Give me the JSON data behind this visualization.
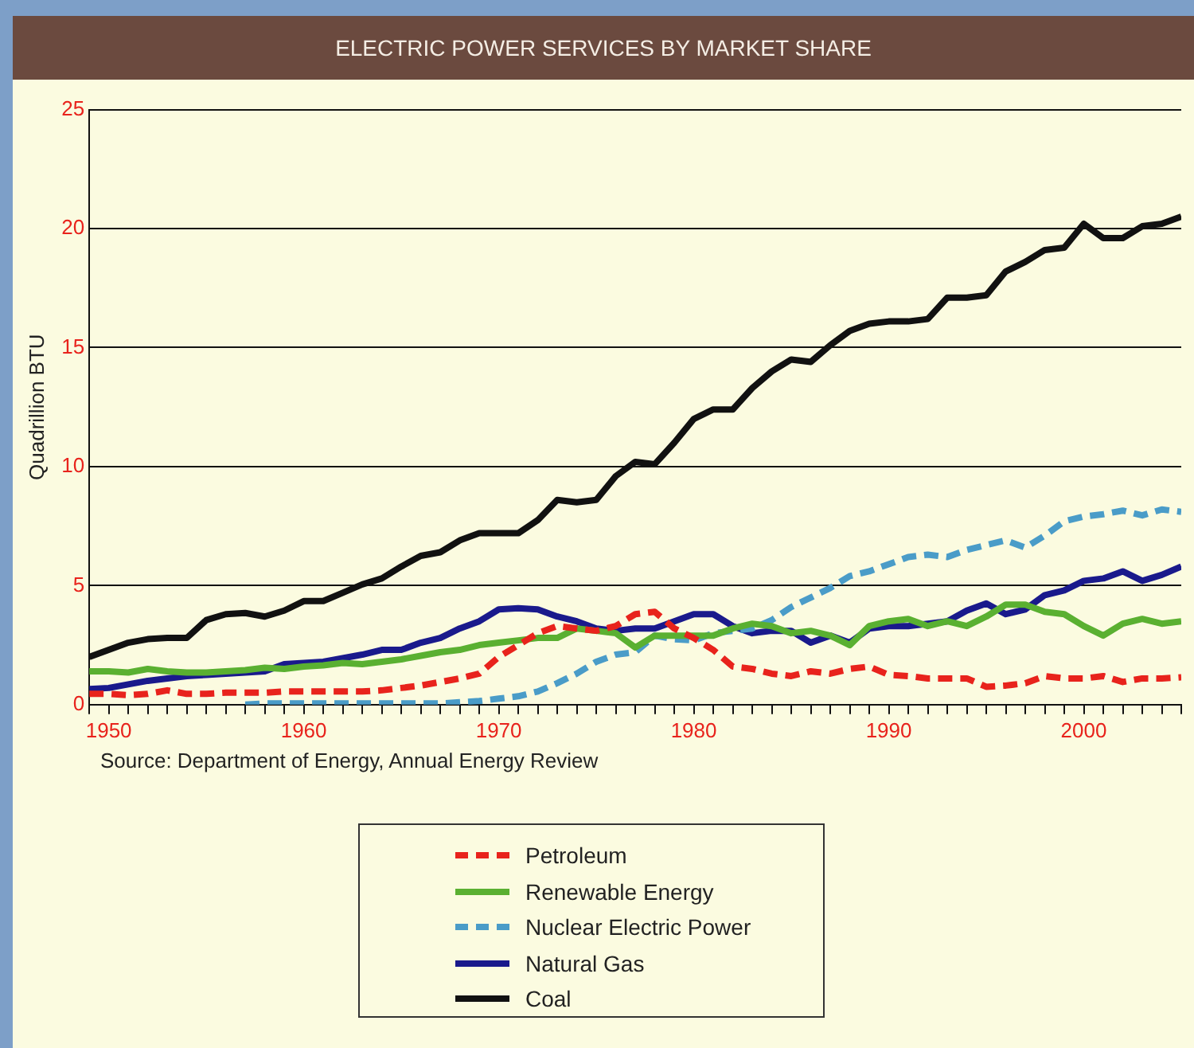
{
  "chart_data": {
    "type": "line",
    "title": "ELECTRIC POWER SERVICES BY MARKET SHARE",
    "ylabel": "Quadrillion BTU",
    "annotations": [
      "Source: Department of Energy, Annual Energy Review"
    ],
    "x": [
      1949,
      1950,
      1951,
      1952,
      1953,
      1954,
      1955,
      1956,
      1957,
      1958,
      1959,
      1960,
      1961,
      1962,
      1963,
      1964,
      1965,
      1966,
      1967,
      1968,
      1969,
      1970,
      1971,
      1972,
      1973,
      1974,
      1975,
      1976,
      1977,
      1978,
      1979,
      1980,
      1981,
      1982,
      1983,
      1984,
      1985,
      1986,
      1987,
      1988,
      1989,
      1990,
      1991,
      1992,
      1993,
      1994,
      1995,
      1996,
      1997,
      1998,
      1999,
      2000,
      2001,
      2002,
      2003,
      2004,
      2005
    ],
    "series": [
      {
        "name": "Petroleum",
        "color": "#e8231c",
        "line_style": "dashed",
        "values": [
          0.45,
          0.45,
          0.4,
          0.45,
          0.6,
          0.45,
          0.45,
          0.5,
          0.5,
          0.5,
          0.55,
          0.55,
          0.55,
          0.55,
          0.55,
          0.6,
          0.7,
          0.8,
          0.95,
          1.1,
          1.3,
          2.0,
          2.5,
          3.0,
          3.3,
          3.2,
          3.1,
          3.3,
          3.8,
          3.9,
          3.2,
          2.8,
          2.3,
          1.6,
          1.5,
          1.3,
          1.2,
          1.4,
          1.3,
          1.5,
          1.6,
          1.25,
          1.2,
          1.1,
          1.1,
          1.1,
          0.75,
          0.8,
          0.9,
          1.2,
          1.1,
          1.1,
          1.2,
          0.95,
          1.1,
          1.1,
          1.15
        ]
      },
      {
        "name": "Renewable Energy",
        "color": "#5ab031",
        "line_style": "solid",
        "values": [
          1.4,
          1.4,
          1.35,
          1.5,
          1.4,
          1.35,
          1.35,
          1.4,
          1.45,
          1.55,
          1.5,
          1.6,
          1.65,
          1.75,
          1.7,
          1.8,
          1.9,
          2.05,
          2.2,
          2.3,
          2.5,
          2.6,
          2.7,
          2.8,
          2.8,
          3.2,
          3.1,
          3.0,
          2.4,
          2.9,
          2.9,
          2.9,
          2.9,
          3.2,
          3.4,
          3.3,
          3.0,
          3.1,
          2.9,
          2.5,
          3.3,
          3.5,
          3.6,
          3.3,
          3.5,
          3.3,
          3.7,
          4.2,
          4.2,
          3.9,
          3.8,
          3.3,
          2.9,
          3.4,
          3.6,
          3.4,
          3.5
        ]
      },
      {
        "name": "Nuclear Electric Power",
        "color": "#4a9cc8",
        "line_style": "dashed",
        "values": [
          null,
          null,
          null,
          null,
          null,
          null,
          null,
          null,
          0.0,
          0.05,
          0.05,
          0.05,
          0.05,
          0.05,
          0.05,
          0.05,
          0.05,
          0.05,
          0.05,
          0.1,
          0.15,
          0.25,
          0.35,
          0.55,
          0.9,
          1.3,
          1.8,
          2.1,
          2.2,
          2.9,
          2.75,
          2.7,
          3.0,
          3.1,
          3.2,
          3.55,
          4.1,
          4.5,
          4.9,
          5.4,
          5.6,
          5.9,
          6.2,
          6.3,
          6.2,
          6.5,
          6.7,
          6.9,
          6.6,
          7.1,
          7.7,
          7.9,
          8.0,
          8.15,
          7.95,
          8.2,
          8.1
        ]
      },
      {
        "name": "Natural Gas",
        "color": "#1a1a8c",
        "line_style": "solid",
        "values": [
          0.65,
          0.7,
          0.85,
          1.0,
          1.1,
          1.2,
          1.25,
          1.3,
          1.35,
          1.4,
          1.7,
          1.75,
          1.8,
          1.95,
          2.1,
          2.3,
          2.3,
          2.6,
          2.8,
          3.2,
          3.5,
          4.0,
          4.05,
          4.0,
          3.7,
          3.5,
          3.2,
          3.1,
          3.2,
          3.2,
          3.5,
          3.8,
          3.8,
          3.3,
          3.0,
          3.1,
          3.1,
          2.6,
          2.9,
          2.6,
          3.2,
          3.3,
          3.3,
          3.4,
          3.5,
          3.95,
          4.25,
          3.8,
          4.0,
          4.6,
          4.8,
          5.2,
          5.3,
          5.6,
          5.2,
          5.45,
          5.8
        ]
      },
      {
        "name": "Coal",
        "color": "#111111",
        "line_style": "solid",
        "values": [
          2.0,
          2.3,
          2.6,
          2.75,
          2.8,
          2.8,
          3.55,
          3.8,
          3.85,
          3.7,
          3.95,
          4.35,
          4.35,
          4.7,
          5.05,
          5.3,
          5.8,
          6.25,
          6.4,
          6.9,
          7.2,
          7.2,
          7.2,
          7.75,
          8.6,
          8.5,
          8.6,
          9.6,
          10.2,
          10.1,
          11.0,
          12.0,
          12.4,
          12.4,
          13.3,
          14.0,
          14.5,
          14.4,
          15.1,
          15.7,
          16.0,
          16.1,
          16.1,
          16.2,
          17.1,
          17.1,
          17.2,
          18.2,
          18.6,
          19.1,
          19.2,
          20.2,
          19.6,
          19.6,
          20.1,
          20.2,
          20.5
        ]
      }
    ],
    "xlim": [
      1949,
      2005
    ],
    "xticks": [
      {
        "value": 1949,
        "label": null
      },
      1950,
      {
        "value": 1951,
        "label": null
      },
      {
        "value": 1952,
        "label": null
      },
      {
        "value": 1953,
        "label": null
      },
      {
        "value": 1954,
        "label": null
      },
      {
        "value": 1955,
        "label": null
      },
      {
        "value": 1956,
        "label": null
      },
      {
        "value": 1957,
        "label": null
      },
      {
        "value": 1958,
        "label": null
      },
      {
        "value": 1959,
        "label": null
      },
      1960,
      {
        "value": 1961,
        "label": null
      },
      {
        "value": 1962,
        "label": null
      },
      {
        "value": 1963,
        "label": null
      },
      {
        "value": 1964,
        "label": null
      },
      {
        "value": 1965,
        "label": null
      },
      {
        "value": 1966,
        "label": null
      },
      {
        "value": 1967,
        "label": null
      },
      {
        "value": 1968,
        "label": null
      },
      {
        "value": 1969,
        "label": null
      },
      1970,
      {
        "value": 1971,
        "label": null
      },
      {
        "value": 1972,
        "label": null
      },
      {
        "value": 1973,
        "label": null
      },
      {
        "value": 1974,
        "label": null
      },
      {
        "value": 1975,
        "label": null
      },
      {
        "value": 1976,
        "label": null
      },
      {
        "value": 1977,
        "label": null
      },
      {
        "value": 1978,
        "label": null
      },
      {
        "value": 1979,
        "label": null
      },
      1980,
      {
        "value": 1981,
        "label": null
      },
      {
        "value": 1982,
        "label": null
      },
      {
        "value": 1983,
        "label": null
      },
      {
        "value": 1984,
        "label": null
      },
      {
        "value": 1985,
        "label": null
      },
      {
        "value": 1986,
        "label": null
      },
      {
        "value": 1987,
        "label": null
      },
      {
        "value": 1988,
        "label": null
      },
      {
        "value": 1989,
        "label": null
      },
      1990,
      {
        "value": 1991,
        "label": null
      },
      {
        "value": 1992,
        "label": null
      },
      {
        "value": 1993,
        "label": null
      },
      {
        "value": 1994,
        "label": null
      },
      {
        "value": 1995,
        "label": null
      },
      {
        "value": 1996,
        "label": null
      },
      {
        "value": 1997,
        "label": null
      },
      {
        "value": 1998,
        "label": null
      },
      {
        "value": 1999,
        "label": null
      },
      2000,
      {
        "value": 2001,
        "label": null
      },
      {
        "value": 2002,
        "label": null
      },
      {
        "value": 2003,
        "label": null
      },
      {
        "value": 2004,
        "label": null
      },
      {
        "value": 2005,
        "label": null
      }
    ],
    "ylim": [
      0,
      25
    ],
    "yticks": [
      0,
      5,
      10,
      15,
      20,
      25
    ],
    "grid": "y",
    "legend": "bottom",
    "marker": "none"
  }
}
